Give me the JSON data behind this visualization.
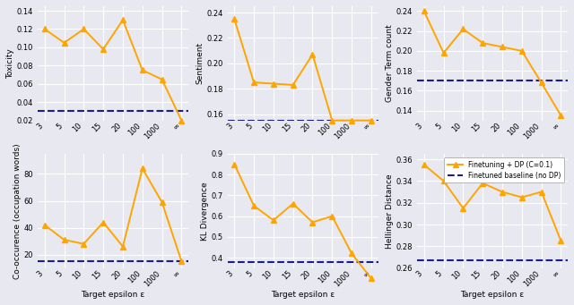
{
  "x_labels": [
    "3",
    "5",
    "10",
    "15",
    "20",
    "100",
    "1000",
    "∞"
  ],
  "x_vals": [
    0,
    1,
    2,
    3,
    4,
    5,
    6,
    7
  ],
  "toxicity_dp": [
    0.12,
    0.105,
    0.12,
    0.098,
    0.13,
    0.075,
    0.065,
    0.02
  ],
  "toxicity_base": 0.03,
  "toxicity_ylim": [
    0.02,
    0.145
  ],
  "sentiment_dp": [
    0.235,
    0.185,
    0.184,
    0.183,
    0.207,
    0.155,
    0.155,
    0.155
  ],
  "sentiment_base": 0.155,
  "sentiment_ylim": [
    0.155,
    0.245
  ],
  "gender_dp": [
    0.24,
    0.198,
    0.222,
    0.208,
    0.204,
    0.2,
    0.168,
    0.135
  ],
  "gender_base": 0.17,
  "gender_ylim": [
    0.13,
    0.245
  ],
  "cooccur_dp": [
    42,
    31,
    28,
    44,
    26,
    84,
    59,
    15
  ],
  "cooccur_base": 15,
  "cooccur_ylim": [
    10,
    95
  ],
  "kl_dp": [
    0.85,
    0.65,
    0.58,
    0.66,
    0.57,
    0.6,
    0.42,
    0.3
  ],
  "kl_base": 0.38,
  "kl_ylim": [
    0.35,
    0.9
  ],
  "hellinger_dp": [
    0.355,
    0.34,
    0.315,
    0.338,
    0.33,
    0.325,
    0.33,
    0.285
  ],
  "hellinger_base": 0.267,
  "hellinger_ylim": [
    0.26,
    0.365
  ],
  "line_color_dp": "#FFA500",
  "line_color_base": "#1C1C8C",
  "bg_color": "#E8E8F0",
  "marker": "^",
  "linewidth": 1.4,
  "markersize": 4.5,
  "ylabels": [
    "Toxicity",
    "Sentiment",
    "Gender Term count",
    "Co-occurence (occupation words)",
    "KL Divergence",
    "Hellinger Distance"
  ],
  "xlabel": "Target epsilon ε",
  "legend_label_dp": "Finetuning + DP (C=0.1)",
  "legend_label_base": "Finetuned baseline (no DP)"
}
